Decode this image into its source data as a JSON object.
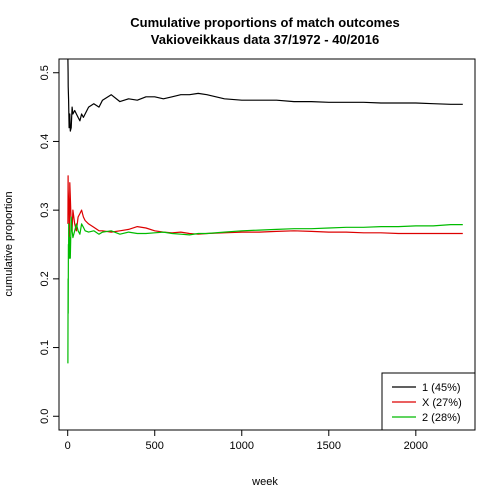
{
  "chart_data": {
    "type": "line",
    "title": "Cumulative proportions of match outcomes",
    "subtitle": "Vakioveikkaus data 37/1972 - 40/2016",
    "xlabel": "week",
    "ylabel": "cumulative proportion",
    "xlim": [
      -50,
      2340
    ],
    "ylim": [
      -0.02,
      0.52
    ],
    "xticks": [
      0,
      500,
      1000,
      1500,
      2000
    ],
    "yticks": [
      0.0,
      0.1,
      0.2,
      0.3,
      0.4,
      0.5
    ],
    "grid": false,
    "legend_position": "bottom-right",
    "series": [
      {
        "name": "1 (45%)",
        "color": "#000000",
        "x": [
          1,
          2,
          3,
          5,
          8,
          12,
          15,
          20,
          25,
          30,
          40,
          50,
          60,
          70,
          80,
          90,
          100,
          120,
          150,
          180,
          200,
          250,
          300,
          350,
          400,
          450,
          500,
          550,
          600,
          650,
          700,
          750,
          800,
          900,
          1000,
          1100,
          1200,
          1300,
          1400,
          1500,
          1600,
          1700,
          1800,
          1900,
          2000,
          2100,
          2200,
          2270
        ],
        "values": [
          0.52,
          0.5,
          0.48,
          0.46,
          0.42,
          0.44,
          0.415,
          0.42,
          0.45,
          0.44,
          0.445,
          0.44,
          0.435,
          0.43,
          0.44,
          0.435,
          0.44,
          0.45,
          0.455,
          0.45,
          0.46,
          0.468,
          0.458,
          0.462,
          0.46,
          0.465,
          0.465,
          0.462,
          0.465,
          0.468,
          0.468,
          0.47,
          0.468,
          0.462,
          0.46,
          0.46,
          0.46,
          0.458,
          0.458,
          0.457,
          0.457,
          0.457,
          0.456,
          0.456,
          0.456,
          0.455,
          0.454,
          0.454
        ]
      },
      {
        "name": "X (27%)",
        "color": "#dd0000",
        "x": [
          1,
          2,
          3,
          5,
          8,
          10,
          12,
          15,
          20,
          25,
          30,
          40,
          50,
          60,
          70,
          80,
          90,
          100,
          120,
          150,
          180,
          200,
          250,
          300,
          350,
          400,
          450,
          500,
          550,
          600,
          650,
          700,
          750,
          800,
          900,
          1000,
          1100,
          1200,
          1300,
          1400,
          1500,
          1600,
          1700,
          1800,
          1900,
          2000,
          2100,
          2200,
          2270
        ],
        "values": [
          0.28,
          0.35,
          0.33,
          0.31,
          0.3,
          0.26,
          0.34,
          0.32,
          0.28,
          0.27,
          0.3,
          0.28,
          0.27,
          0.29,
          0.295,
          0.3,
          0.29,
          0.285,
          0.28,
          0.275,
          0.27,
          0.27,
          0.268,
          0.27,
          0.272,
          0.276,
          0.274,
          0.27,
          0.268,
          0.267,
          0.268,
          0.266,
          0.265,
          0.266,
          0.267,
          0.268,
          0.268,
          0.269,
          0.27,
          0.269,
          0.268,
          0.268,
          0.267,
          0.267,
          0.266,
          0.266,
          0.266,
          0.266,
          0.266
        ]
      },
      {
        "name": "2 (28%)",
        "color": "#00bb00",
        "x": [
          1,
          2,
          3,
          4,
          5,
          6,
          8,
          10,
          12,
          15,
          20,
          25,
          30,
          40,
          50,
          60,
          70,
          80,
          90,
          100,
          120,
          150,
          180,
          200,
          250,
          300,
          350,
          400,
          450,
          500,
          550,
          600,
          650,
          700,
          750,
          800,
          900,
          1000,
          1100,
          1200,
          1300,
          1400,
          1500,
          1600,
          1700,
          1800,
          1900,
          2000,
          2100,
          2200,
          2270
        ],
        "values": [
          0.077,
          0.2,
          0.15,
          0.25,
          0.23,
          0.28,
          0.25,
          0.23,
          0.26,
          0.23,
          0.29,
          0.27,
          0.26,
          0.27,
          0.28,
          0.27,
          0.265,
          0.28,
          0.275,
          0.27,
          0.268,
          0.27,
          0.265,
          0.268,
          0.27,
          0.265,
          0.268,
          0.266,
          0.266,
          0.267,
          0.268,
          0.266,
          0.265,
          0.264,
          0.266,
          0.266,
          0.268,
          0.27,
          0.271,
          0.272,
          0.273,
          0.273,
          0.274,
          0.275,
          0.275,
          0.276,
          0.276,
          0.277,
          0.277,
          0.279,
          0.279
        ]
      }
    ]
  }
}
